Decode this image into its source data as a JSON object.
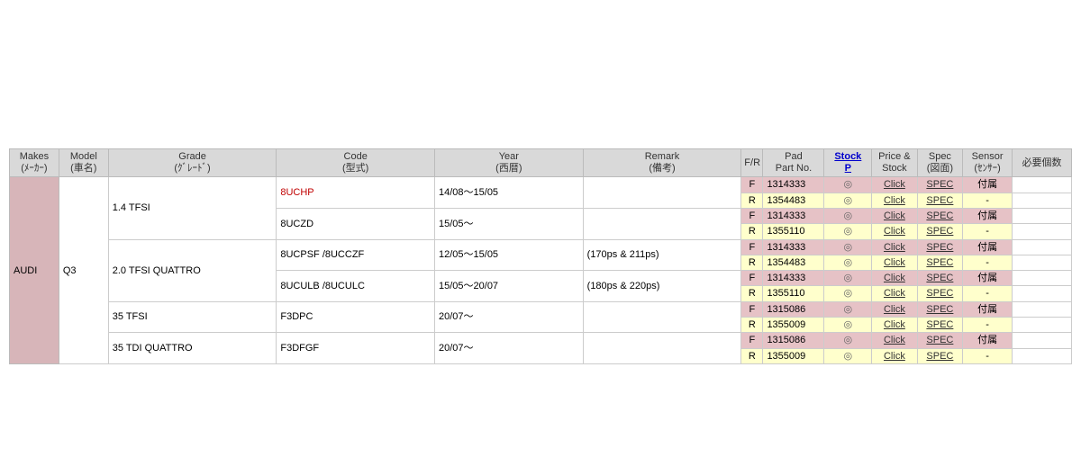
{
  "headers": {
    "makes": "Makes\n(ﾒｰｶｰ)",
    "model": "Model\n(車名)",
    "grade": "Grade\n(ｸﾞﾚｰﾄﾞ)",
    "code": "Code\n(型式)",
    "year": "Year\n(西暦)",
    "remark": "Remark\n(備考)",
    "fr": "F/R",
    "partno": "Pad\nPart No.",
    "stockp": "Stock\nP",
    "price": "Price &\nStock",
    "spec": "Spec\n(図面)",
    "sensor": "Sensor\n(ｾﾝｻｰ)",
    "qty": "必要個数"
  },
  "makes": "AUDI",
  "model": "Q3",
  "grades": [
    {
      "grade": "1.4 TFSI",
      "codes": [
        {
          "code": "8UCHP",
          "code_red": true,
          "year": "14/08～15/05",
          "remark": "",
          "pads": [
            {
              "fr": "F",
              "part": "1314333",
              "stock": "◎",
              "price": "Click",
              "spec": "SPEC",
              "sensor": "付属"
            },
            {
              "fr": "R",
              "part": "1354483",
              "stock": "◎",
              "price": "Click",
              "spec": "SPEC",
              "sensor": "-"
            }
          ]
        },
        {
          "code": "8UCZD",
          "code_red": false,
          "year": "15/05～",
          "remark": "",
          "pads": [
            {
              "fr": "F",
              "part": "1314333",
              "stock": "◎",
              "price": "Click",
              "spec": "SPEC",
              "sensor": "付属"
            },
            {
              "fr": "R",
              "part": "1355110",
              "stock": "◎",
              "price": "Click",
              "spec": "SPEC",
              "sensor": "-"
            }
          ]
        }
      ]
    },
    {
      "grade": "2.0 TFSI QUATTRO",
      "codes": [
        {
          "code": "8UCPSF /8UCCZF",
          "code_red": false,
          "year": "12/05～15/05",
          "remark": "(170ps & 211ps)",
          "pads": [
            {
              "fr": "F",
              "part": "1314333",
              "stock": "◎",
              "price": "Click",
              "spec": "SPEC",
              "sensor": "付属"
            },
            {
              "fr": "R",
              "part": "1354483",
              "stock": "◎",
              "price": "Click",
              "spec": "SPEC",
              "sensor": "-"
            }
          ]
        },
        {
          "code": "8UCULB /8UCULC",
          "code_red": false,
          "year": "15/05～20/07",
          "remark": "(180ps & 220ps)",
          "pads": [
            {
              "fr": "F",
              "part": "1314333",
              "stock": "◎",
              "price": "Click",
              "spec": "SPEC",
              "sensor": "付属"
            },
            {
              "fr": "R",
              "part": "1355110",
              "stock": "◎",
              "price": "Click",
              "spec": "SPEC",
              "sensor": "-"
            }
          ]
        }
      ]
    },
    {
      "grade": "35 TFSI",
      "codes": [
        {
          "code": "F3DPC",
          "code_red": false,
          "year": "20/07～",
          "remark": "",
          "pads": [
            {
              "fr": "F",
              "part": "1315086",
              "stock": "◎",
              "price": "Click",
              "spec": "SPEC",
              "sensor": "付属"
            },
            {
              "fr": "R",
              "part": "1355009",
              "stock": "◎",
              "price": "Click",
              "spec": "SPEC",
              "sensor": "-"
            }
          ]
        }
      ]
    },
    {
      "grade": "35 TDI QUATTRO",
      "codes": [
        {
          "code": "F3DFGF",
          "code_red": false,
          "year": "20/07～",
          "remark": "",
          "pads": [
            {
              "fr": "F",
              "part": "1315086",
              "stock": "◎",
              "price": "Click",
              "spec": "SPEC",
              "sensor": "付属"
            },
            {
              "fr": "R",
              "part": "1355009",
              "stock": "◎",
              "price": "Click",
              "spec": "SPEC",
              "sensor": "-"
            }
          ]
        }
      ]
    }
  ]
}
